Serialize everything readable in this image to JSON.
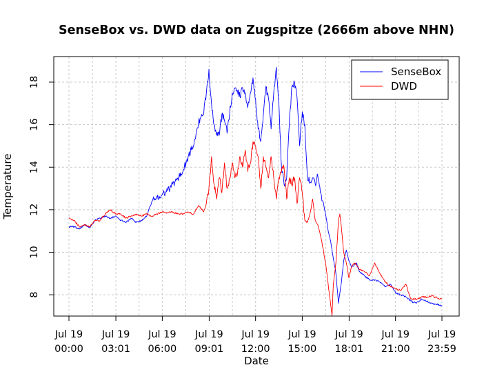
{
  "chart_data": {
    "type": "line",
    "title": "SenseBox vs. DWD data on Zugspitze (2666m above NHN)",
    "xlabel": "Date",
    "ylabel": "Temperature",
    "ylim": [
      7,
      19.2
    ],
    "xlim": [
      0,
      1439
    ],
    "grid": true,
    "legend": "top-right",
    "x_ticks": [
      {
        "x": 0,
        "line1": "Jul 19",
        "line2": "00:00"
      },
      {
        "x": 181,
        "line1": "Jul 19",
        "line2": "03:01"
      },
      {
        "x": 360,
        "line1": "Jul 19",
        "line2": "06:00"
      },
      {
        "x": 541,
        "line1": "Jul 19",
        "line2": "09:01"
      },
      {
        "x": 720,
        "line1": "Jul 19",
        "line2": "12:00"
      },
      {
        "x": 900,
        "line1": "Jul 19",
        "line2": "15:00"
      },
      {
        "x": 1081,
        "line1": "Jul 19",
        "line2": "18:01"
      },
      {
        "x": 1260,
        "line1": "Jul 19",
        "line2": "21:00"
      },
      {
        "x": 1439,
        "line1": "Jul 19",
        "line2": "23:59"
      }
    ],
    "y_ticks": [
      8,
      10,
      12,
      14,
      16,
      18
    ],
    "series": [
      {
        "name": "SenseBox",
        "color": "#0000ff",
        "points": [
          [
            0,
            11.2
          ],
          [
            20,
            11.2
          ],
          [
            40,
            11.1
          ],
          [
            60,
            11.3
          ],
          [
            80,
            11.15
          ],
          [
            100,
            11.5
          ],
          [
            120,
            11.6
          ],
          [
            140,
            11.7
          ],
          [
            160,
            11.6
          ],
          [
            180,
            11.7
          ],
          [
            200,
            11.5
          ],
          [
            220,
            11.4
          ],
          [
            240,
            11.6
          ],
          [
            260,
            11.4
          ],
          [
            280,
            11.5
          ],
          [
            300,
            11.7
          ],
          [
            320,
            12.4
          ],
          [
            340,
            12.6
          ],
          [
            360,
            12.7
          ],
          [
            380,
            12.9
          ],
          [
            400,
            13.2
          ],
          [
            420,
            13.5
          ],
          [
            440,
            13.8
          ],
          [
            460,
            14.5
          ],
          [
            480,
            15.0
          ],
          [
            500,
            16.1
          ],
          [
            520,
            16.5
          ],
          [
            530,
            17.5
          ],
          [
            540,
            18.6
          ],
          [
            550,
            17.0
          ],
          [
            560,
            16.0
          ],
          [
            570,
            15.5
          ],
          [
            580,
            15.5
          ],
          [
            590,
            16.5
          ],
          [
            600,
            16.2
          ],
          [
            610,
            15.6
          ],
          [
            620,
            16.5
          ],
          [
            630,
            17.5
          ],
          [
            640,
            17.7
          ],
          [
            650,
            17.6
          ],
          [
            660,
            17.3
          ],
          [
            670,
            17.7
          ],
          [
            680,
            17.5
          ],
          [
            690,
            16.8
          ],
          [
            700,
            17.5
          ],
          [
            710,
            18.2
          ],
          [
            720,
            17.2
          ],
          [
            730,
            15.8
          ],
          [
            740,
            15.2
          ],
          [
            750,
            16.5
          ],
          [
            760,
            17.8
          ],
          [
            770,
            17.2
          ],
          [
            780,
            15.8
          ],
          [
            790,
            17.5
          ],
          [
            800,
            18.7
          ],
          [
            810,
            17.0
          ],
          [
            820,
            14.0
          ],
          [
            830,
            13.2
          ],
          [
            840,
            13.5
          ],
          [
            850,
            16.0
          ],
          [
            860,
            17.8
          ],
          [
            870,
            18.0
          ],
          [
            880,
            17.3
          ],
          [
            890,
            15.0
          ],
          [
            900,
            16.6
          ],
          [
            910,
            16.0
          ],
          [
            920,
            13.5
          ],
          [
            930,
            13.3
          ],
          [
            940,
            13.5
          ],
          [
            950,
            13.2
          ],
          [
            960,
            13.6
          ],
          [
            970,
            12.8
          ],
          [
            980,
            12.4
          ],
          [
            990,
            11.8
          ],
          [
            1000,
            11.0
          ],
          [
            1010,
            10.5
          ],
          [
            1020,
            9.7
          ],
          [
            1030,
            9.0
          ],
          [
            1040,
            7.6
          ],
          [
            1050,
            8.5
          ],
          [
            1060,
            9.6
          ],
          [
            1070,
            10.1
          ],
          [
            1080,
            9.6
          ],
          [
            1090,
            9.3
          ],
          [
            1100,
            9.4
          ],
          [
            1110,
            9.5
          ],
          [
            1120,
            9.1
          ],
          [
            1140,
            8.9
          ],
          [
            1160,
            8.7
          ],
          [
            1180,
            8.7
          ],
          [
            1200,
            8.6
          ],
          [
            1220,
            8.4
          ],
          [
            1240,
            8.5
          ],
          [
            1260,
            8.1
          ],
          [
            1280,
            8.0
          ],
          [
            1300,
            7.9
          ],
          [
            1320,
            7.7
          ],
          [
            1340,
            7.6
          ],
          [
            1360,
            7.8
          ],
          [
            1380,
            7.7
          ],
          [
            1400,
            7.6
          ],
          [
            1420,
            7.55
          ],
          [
            1439,
            7.5
          ]
        ]
      },
      {
        "name": "DWD",
        "color": "#ff0000",
        "points": [
          [
            0,
            11.6
          ],
          [
            20,
            11.5
          ],
          [
            40,
            11.2
          ],
          [
            60,
            11.3
          ],
          [
            80,
            11.2
          ],
          [
            100,
            11.5
          ],
          [
            120,
            11.5
          ],
          [
            140,
            11.8
          ],
          [
            160,
            12.0
          ],
          [
            180,
            11.8
          ],
          [
            200,
            11.8
          ],
          [
            220,
            11.6
          ],
          [
            240,
            11.7
          ],
          [
            260,
            11.8
          ],
          [
            280,
            11.7
          ],
          [
            300,
            11.8
          ],
          [
            320,
            11.7
          ],
          [
            340,
            11.8
          ],
          [
            360,
            11.9
          ],
          [
            380,
            11.85
          ],
          [
            400,
            11.9
          ],
          [
            420,
            11.8
          ],
          [
            440,
            11.8
          ],
          [
            460,
            11.9
          ],
          [
            480,
            11.8
          ],
          [
            500,
            12.2
          ],
          [
            520,
            11.9
          ],
          [
            530,
            12.3
          ],
          [
            540,
            13.0
          ],
          [
            550,
            14.5
          ],
          [
            560,
            13.2
          ],
          [
            570,
            12.5
          ],
          [
            580,
            13.5
          ],
          [
            590,
            12.8
          ],
          [
            600,
            14.2
          ],
          [
            610,
            13.0
          ],
          [
            620,
            13.5
          ],
          [
            630,
            14.2
          ],
          [
            640,
            13.5
          ],
          [
            650,
            13.7
          ],
          [
            660,
            14.5
          ],
          [
            670,
            14.0
          ],
          [
            680,
            14.8
          ],
          [
            690,
            13.8
          ],
          [
            700,
            14.2
          ],
          [
            710,
            15.2
          ],
          [
            720,
            15.0
          ],
          [
            730,
            14.5
          ],
          [
            740,
            13.0
          ],
          [
            750,
            14.5
          ],
          [
            760,
            14.0
          ],
          [
            770,
            13.5
          ],
          [
            780,
            14.5
          ],
          [
            790,
            13.5
          ],
          [
            800,
            12.5
          ],
          [
            810,
            13.5
          ],
          [
            820,
            13.8
          ],
          [
            830,
            14.0
          ],
          [
            840,
            12.5
          ],
          [
            850,
            13.5
          ],
          [
            860,
            13.2
          ],
          [
            870,
            13.5
          ],
          [
            880,
            12.3
          ],
          [
            890,
            13.5
          ],
          [
            900,
            12.8
          ],
          [
            910,
            11.5
          ],
          [
            920,
            11.4
          ],
          [
            930,
            11.8
          ],
          [
            940,
            12.5
          ],
          [
            950,
            11.5
          ],
          [
            960,
            11.3
          ],
          [
            970,
            10.8
          ],
          [
            980,
            10.2
          ],
          [
            990,
            9.5
          ],
          [
            1000,
            8.5
          ],
          [
            1010,
            7.5
          ],
          [
            1015,
            7.0
          ],
          [
            1020,
            8.5
          ],
          [
            1030,
            9.5
          ],
          [
            1040,
            11.5
          ],
          [
            1045,
            11.8
          ],
          [
            1050,
            11.3
          ],
          [
            1060,
            10.0
          ],
          [
            1070,
            9.5
          ],
          [
            1080,
            8.8
          ],
          [
            1090,
            9.3
          ],
          [
            1100,
            9.5
          ],
          [
            1110,
            9.4
          ],
          [
            1120,
            9.2
          ],
          [
            1140,
            9.1
          ],
          [
            1160,
            8.9
          ],
          [
            1180,
            9.5
          ],
          [
            1200,
            9.0
          ],
          [
            1220,
            8.6
          ],
          [
            1240,
            8.4
          ],
          [
            1260,
            8.3
          ],
          [
            1280,
            8.2
          ],
          [
            1300,
            8.5
          ],
          [
            1310,
            8.1
          ],
          [
            1320,
            7.8
          ],
          [
            1340,
            7.8
          ],
          [
            1360,
            7.9
          ],
          [
            1380,
            7.9
          ],
          [
            1400,
            7.95
          ],
          [
            1420,
            7.85
          ],
          [
            1439,
            7.8
          ]
        ]
      }
    ]
  }
}
